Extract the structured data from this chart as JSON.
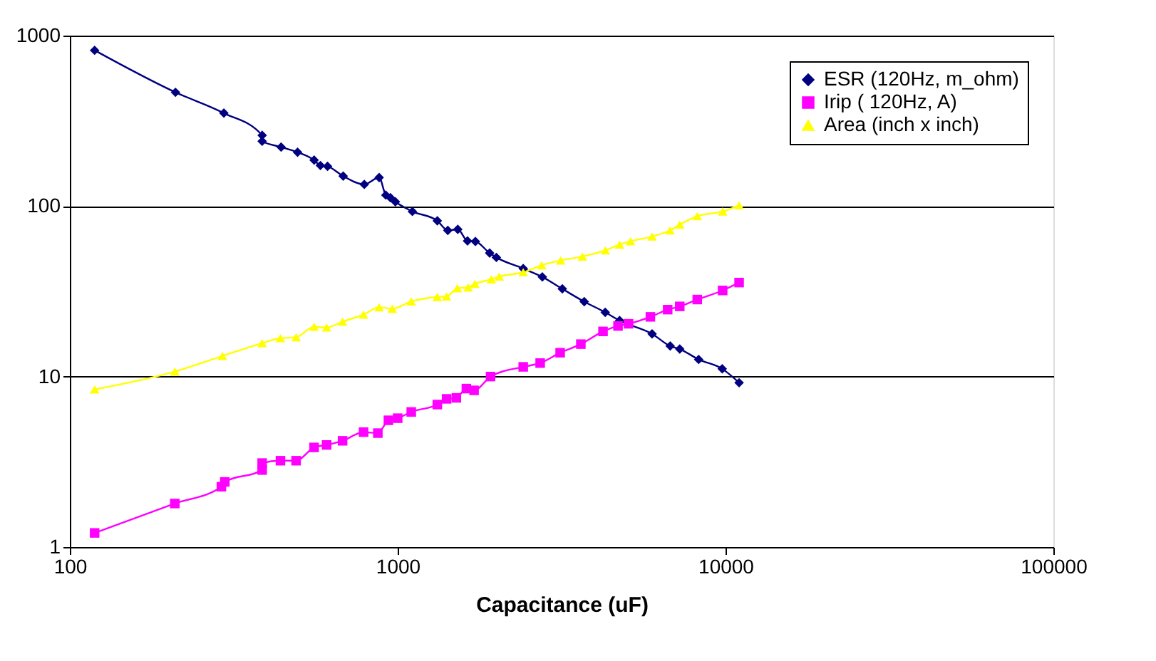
{
  "chart_data": {
    "type": "line",
    "xlabel": "Capacitance (uF)",
    "log": "xy",
    "xlim": [
      100,
      100000
    ],
    "xticks": [
      100,
      1000,
      10000,
      100000
    ],
    "ylim": [
      1,
      1000
    ],
    "yticks": [
      1,
      10,
      100,
      1000
    ],
    "grid": "y",
    "legend": "top right",
    "series": [
      {
        "name": "ESR (120Hz, m_ohm)",
        "color": "#000080",
        "marker": "diamond",
        "x": [
          119,
          210,
          295,
          386,
          386,
          441,
          495,
          556,
          581,
          611,
          682,
          791,
          878,
          920,
          950,
          984,
          1109,
          1321,
          1422,
          1525,
          1633,
          1726,
          1908,
          2000,
          2415,
          2762,
          3178,
          3707,
          4296,
          4753,
          5970,
          6780,
          7250,
          8280,
          9770,
          11000
        ],
        "values": [
          820,
          465,
          351,
          260,
          240,
          222,
          207,
          186,
          173,
          171,
          150,
          134,
          147,
          116,
          112,
          106,
          93,
          82,
          72,
          73,
          62.5,
          62,
          53,
          50,
          43,
          38.4,
          32.7,
          27.5,
          23.8,
          21.3,
          17.8,
          15.1,
          14.5,
          12.6,
          11.1,
          9.2
        ]
      },
      {
        "name": "Irip ( 120Hz, A)",
        "color": "#ff00ff",
        "marker": "square",
        "x": [
          119,
          209,
          290,
          297,
          386,
          386,
          439,
          490,
          556,
          607,
          679,
          787,
          870,
          937,
          1000,
          1100,
          1321,
          1410,
          1510,
          1620,
          1710,
          1920,
          2415,
          2720,
          3130,
          3620,
          4230,
          4700,
          5060,
          5900,
          6660,
          7250,
          8200,
          9800,
          11000
        ],
        "values": [
          1.21,
          1.8,
          2.26,
          2.41,
          2.83,
          3.11,
          3.21,
          3.21,
          3.84,
          3.97,
          4.2,
          4.72,
          4.66,
          5.54,
          5.7,
          6.2,
          6.85,
          7.4,
          7.5,
          8.5,
          8.3,
          10,
          11.4,
          12,
          13.8,
          15.5,
          18.4,
          19.8,
          20.4,
          22.4,
          24.7,
          25.8,
          28.3,
          32,
          35.6
        ]
      },
      {
        "name": "Area (inch x inch)",
        "color": "#ffff00",
        "marker": "triangle",
        "x": [
          119,
          209,
          292,
          386,
          439,
          490,
          556,
          607,
          679,
          787,
          878,
          963,
          1100,
          1321,
          1410,
          1520,
          1640,
          1720,
          1930,
          2040,
          2415,
          2750,
          3140,
          3660,
          4300,
          4750,
          5130,
          5970,
          6770,
          7250,
          8200,
          9800,
          11000
        ],
        "values": [
          8.4,
          10.7,
          13.2,
          15.7,
          16.8,
          17,
          19.6,
          19.4,
          21,
          23.1,
          25.5,
          25,
          27.6,
          29.3,
          29.5,
          33,
          33.4,
          35,
          37.2,
          38.6,
          40.9,
          45,
          48,
          50.6,
          55,
          59.4,
          62.2,
          66.3,
          72,
          77.8,
          87.3,
          93,
          101
        ]
      }
    ]
  }
}
